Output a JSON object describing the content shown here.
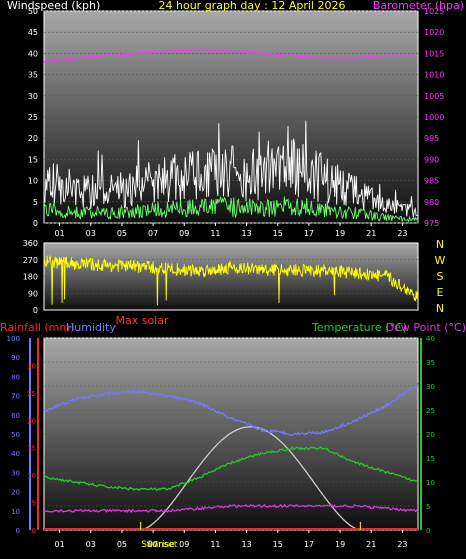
{
  "top": {
    "wind_label": "Windspeed (kph)",
    "date_title": "24 hour graph day : 12 April 2026",
    "baro_label": "Barometer (hpa)",
    "wind_ticks": [
      "0",
      "5",
      "10",
      "15",
      "20",
      "25",
      "30",
      "35",
      "40",
      "45",
      "50"
    ],
    "baro_ticks": [
      "975",
      "980",
      "985",
      "990",
      "995",
      "1000",
      "1005",
      "1010",
      "1015",
      "1020",
      "1025"
    ],
    "hour_ticks": [
      "01",
      "03",
      "05",
      "07",
      "09",
      "11",
      "13",
      "15",
      "17",
      "19",
      "21",
      "23"
    ]
  },
  "mid": {
    "dir_ticks": [
      "0",
      "90",
      "180",
      "270",
      "360"
    ],
    "compass": [
      "N",
      "W",
      "S",
      "E",
      "N"
    ],
    "max_solar": "Max solar"
  },
  "bottom": {
    "rain_label": "Rainfall (mm)",
    "hum_label": "Humidity",
    "temp_label": "Temperature (°C)",
    "dew_label": "Dew Point (°C)",
    "hum_ticks": [
      "0",
      "10",
      "20",
      "30",
      "40",
      "50",
      "60",
      "70",
      "80",
      "90",
      "100"
    ],
    "rain_ticks": [
      "0",
      "5",
      "10",
      "15",
      "20",
      "25",
      "30"
    ],
    "temp_ticks": [
      "0",
      "5",
      "10",
      "15",
      "20",
      "25",
      "30",
      "35",
      "40"
    ],
    "hour_labels": [
      "01",
      "03",
      "05",
      "07",
      "09",
      "11",
      "13",
      "15",
      "17",
      "19",
      "21",
      "23"
    ],
    "sunrise": "Sunrise",
    "sunset": "Sunset"
  },
  "colors": {
    "wind_gust": "#ffffff",
    "wind_avg": "#66ff66",
    "barometer": "#ff33ff",
    "direction": "#ffff00",
    "humidity": "#7777ff",
    "rain": "#ff2222",
    "temperature": "#22cc22",
    "dewpoint": "#dd33dd",
    "solar": "#cccccc",
    "max_solar_label": "#ff3333"
  },
  "chart_data": [
    {
      "type": "line",
      "title": "24 hour graph day : 12 April 2026",
      "ylabel": "Windspeed (kph)",
      "ylabel_right": "Barometer (hpa)",
      "ylim": [
        0,
        50
      ],
      "ylim_right": [
        975,
        1025
      ],
      "x": [
        0,
        2,
        4,
        6,
        8,
        10,
        12,
        14,
        16,
        18,
        20,
        22,
        24
      ],
      "series": [
        {
          "name": "Windspeed (kph)",
          "axis": "left",
          "values": [
            12,
            10,
            9,
            11,
            13,
            14,
            15,
            14,
            16,
            13,
            9,
            5,
            3
          ]
        },
        {
          "name": "Barometer (hpa)",
          "axis": "right",
          "values": [
            1013,
            1014,
            1014.5,
            1015,
            1015.5,
            1016,
            1015.5,
            1015,
            1014.5,
            1014,
            1014,
            1014.5,
            1014.5
          ]
        }
      ]
    },
    {
      "type": "scatter",
      "ylim": [
        0,
        360
      ],
      "x": [
        0,
        2,
        4,
        6,
        8,
        10,
        12,
        14,
        16,
        18,
        20,
        22,
        24
      ],
      "series": [
        {
          "values": [
            260,
            250,
            240,
            235,
            220,
            210,
            230,
            215,
            215,
            210,
            200,
            180,
            70
          ]
        }
      ]
    },
    {
      "type": "line",
      "ylabel": "Humidity",
      "ylabel_right": "Temperature (°C)",
      "ylim": [
        0,
        100
      ],
      "ylim_right": [
        0,
        40
      ],
      "x": [
        0,
        2,
        4,
        6,
        8,
        10,
        12,
        14,
        16,
        18,
        20,
        22,
        24
      ],
      "series": [
        {
          "name": "Humidity",
          "axis": "left",
          "values": [
            62,
            68,
            71,
            72,
            70,
            66,
            58,
            52,
            50,
            51,
            57,
            65,
            76
          ]
        },
        {
          "name": "Temperature (°C)",
          "axis": "right",
          "values": [
            11,
            10,
            9,
            8.5,
            8.5,
            11,
            14,
            16,
            17,
            17,
            14,
            12,
            10
          ]
        },
        {
          "name": "Dew Point (°C)",
          "axis": "right",
          "values": [
            4,
            4,
            4,
            4,
            4,
            4.5,
            5,
            5,
            5,
            5,
            5,
            4.5,
            4
          ]
        },
        {
          "name": "Rainfall (mm)",
          "axis": "right",
          "values": [
            0,
            0,
            0,
            0,
            0,
            0,
            0,
            0,
            0,
            0,
            0,
            0,
            0
          ]
        },
        {
          "name": "Max solar",
          "axis": "right",
          "values": [
            0,
            0,
            0,
            0,
            3,
            14,
            21,
            19,
            10,
            0,
            0,
            0,
            0
          ]
        }
      ]
    }
  ]
}
